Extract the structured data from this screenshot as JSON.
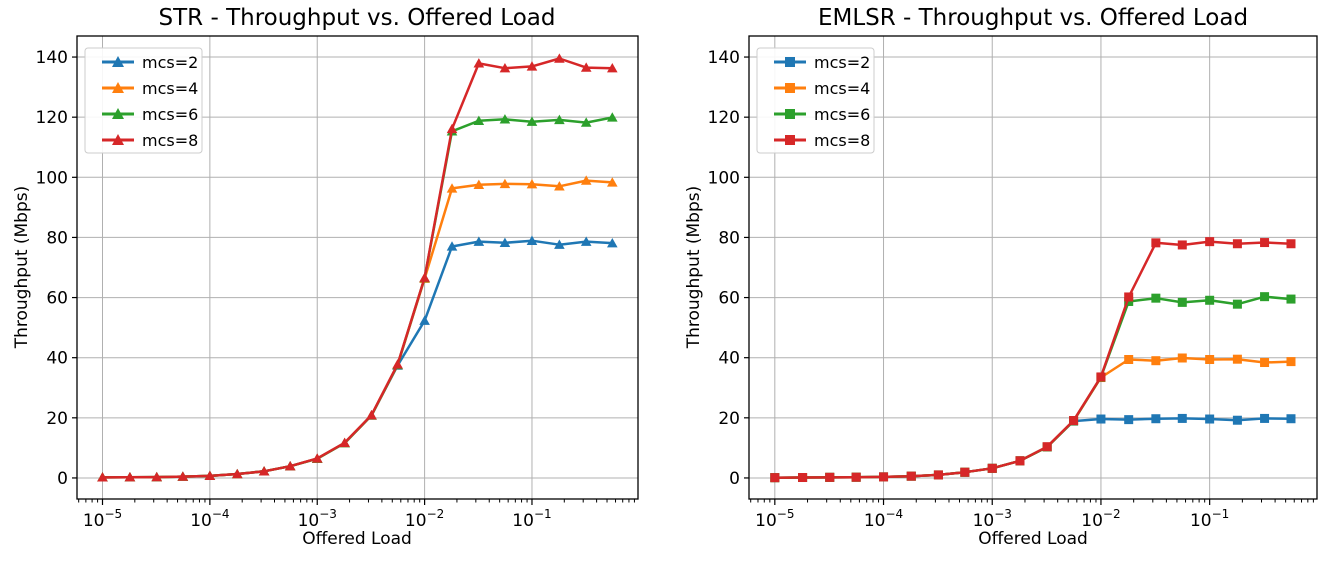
{
  "page": {
    "background": "#ffffff"
  },
  "chart_data": [
    {
      "id": "str",
      "type": "line",
      "title": "STR - Throughput vs. Offered Load",
      "xlabel": "Offered Load",
      "ylabel": "Throughput (Mbps)",
      "xscale": "log",
      "xlim": [
        5.8e-06,
        0.97
      ],
      "ylim": [
        -7,
        147
      ],
      "grid": true,
      "legend_position": "upper left",
      "marker": "triangle",
      "ytick_values": [
        0,
        20,
        40,
        60,
        80,
        100,
        120,
        140
      ],
      "xtick_labels": [
        "10^-5",
        "10^-4",
        "10^-3",
        "10^-2",
        "10^-1"
      ],
      "xtick_exponents": [
        -5,
        -4,
        -3,
        -2,
        -1
      ],
      "x": [
        1e-05,
        1.8e-05,
        3.2e-05,
        5.6e-05,
        0.0001,
        0.00018,
        0.00032,
        0.00056,
        0.001,
        0.0018,
        0.0032,
        0.0056,
        0.01,
        0.018,
        0.032,
        0.056,
        0.1,
        0.18,
        0.32,
        0.56
      ],
      "series": [
        {
          "name": "mcs=2",
          "color": "#1f77b4",
          "values": [
            0.2,
            0.25,
            0.3,
            0.45,
            0.7,
            1.3,
            2.2,
            3.9,
            6.4,
            11.6,
            20.8,
            37.4,
            52.3,
            77.0,
            78.6,
            78.2,
            78.9,
            77.6,
            78.6,
            78.1
          ]
        },
        {
          "name": "mcs=4",
          "color": "#ff7f0e",
          "values": [
            0.2,
            0.25,
            0.3,
            0.45,
            0.7,
            1.3,
            2.2,
            3.9,
            6.4,
            11.6,
            20.8,
            37.6,
            66.3,
            96.3,
            97.5,
            97.8,
            97.7,
            97.0,
            98.9,
            98.3
          ]
        },
        {
          "name": "mcs=6",
          "color": "#2ca02c",
          "values": [
            0.2,
            0.25,
            0.3,
            0.45,
            0.7,
            1.3,
            2.2,
            3.9,
            6.4,
            11.6,
            20.8,
            37.6,
            66.5,
            115.3,
            118.8,
            119.3,
            118.5,
            119.1,
            118.2,
            119.9
          ]
        },
        {
          "name": "mcs=8",
          "color": "#d62728",
          "values": [
            0.2,
            0.25,
            0.3,
            0.45,
            0.7,
            1.3,
            2.2,
            3.9,
            6.5,
            11.7,
            20.9,
            37.8,
            66.6,
            116.1,
            137.9,
            136.3,
            136.9,
            139.5,
            136.5,
            136.3
          ]
        }
      ]
    },
    {
      "id": "emlsr",
      "type": "line",
      "title": "EMLSR - Throughput vs. Offered Load",
      "xlabel": "Offered Load",
      "ylabel": "Throughput (Mbps)",
      "xscale": "log",
      "xlim": [
        5.8e-06,
        0.97
      ],
      "ylim": [
        -7,
        147
      ],
      "grid": true,
      "legend_position": "upper left",
      "marker": "square",
      "ytick_values": [
        0,
        20,
        40,
        60,
        80,
        100,
        120,
        140
      ],
      "xtick_labels": [
        "10^-5",
        "10^-4",
        "10^-3",
        "10^-2",
        "10^-1"
      ],
      "xtick_exponents": [
        -5,
        -4,
        -3,
        -2,
        -1
      ],
      "x": [
        1e-05,
        1.8e-05,
        3.2e-05,
        5.6e-05,
        0.0001,
        0.00018,
        0.00032,
        0.00056,
        0.001,
        0.0018,
        0.0032,
        0.0056,
        0.01,
        0.018,
        0.032,
        0.056,
        0.1,
        0.18,
        0.32,
        0.56
      ],
      "series": [
        {
          "name": "mcs=2",
          "color": "#1f77b4",
          "values": [
            0.1,
            0.15,
            0.2,
            0.25,
            0.35,
            0.6,
            1.0,
            1.9,
            3.2,
            5.7,
            10.3,
            18.9,
            19.6,
            19.4,
            19.7,
            19.8,
            19.6,
            19.2,
            19.8,
            19.7
          ]
        },
        {
          "name": "mcs=4",
          "color": "#ff7f0e",
          "values": [
            0.1,
            0.15,
            0.2,
            0.25,
            0.35,
            0.6,
            1.0,
            1.9,
            3.2,
            5.7,
            10.3,
            19.0,
            33.4,
            39.4,
            39.0,
            39.9,
            39.4,
            39.5,
            38.4,
            38.7
          ]
        },
        {
          "name": "mcs=6",
          "color": "#2ca02c",
          "values": [
            0.1,
            0.15,
            0.2,
            0.25,
            0.35,
            0.6,
            1.0,
            1.9,
            3.2,
            5.7,
            10.3,
            19.0,
            33.5,
            58.7,
            59.8,
            58.4,
            59.1,
            57.8,
            60.3,
            59.5
          ]
        },
        {
          "name": "mcs=8",
          "color": "#d62728",
          "values": [
            0.1,
            0.15,
            0.2,
            0.25,
            0.35,
            0.6,
            1.0,
            1.9,
            3.2,
            5.7,
            10.4,
            19.1,
            33.6,
            60.2,
            78.2,
            77.5,
            78.6,
            77.9,
            78.3,
            77.9
          ]
        }
      ]
    }
  ],
  "style": {
    "grid_color": "#b0b0b0",
    "spine_color": "#000000",
    "legend_border_color": "#cccccc",
    "legend_background": "rgba(255,255,255,0.9)"
  }
}
